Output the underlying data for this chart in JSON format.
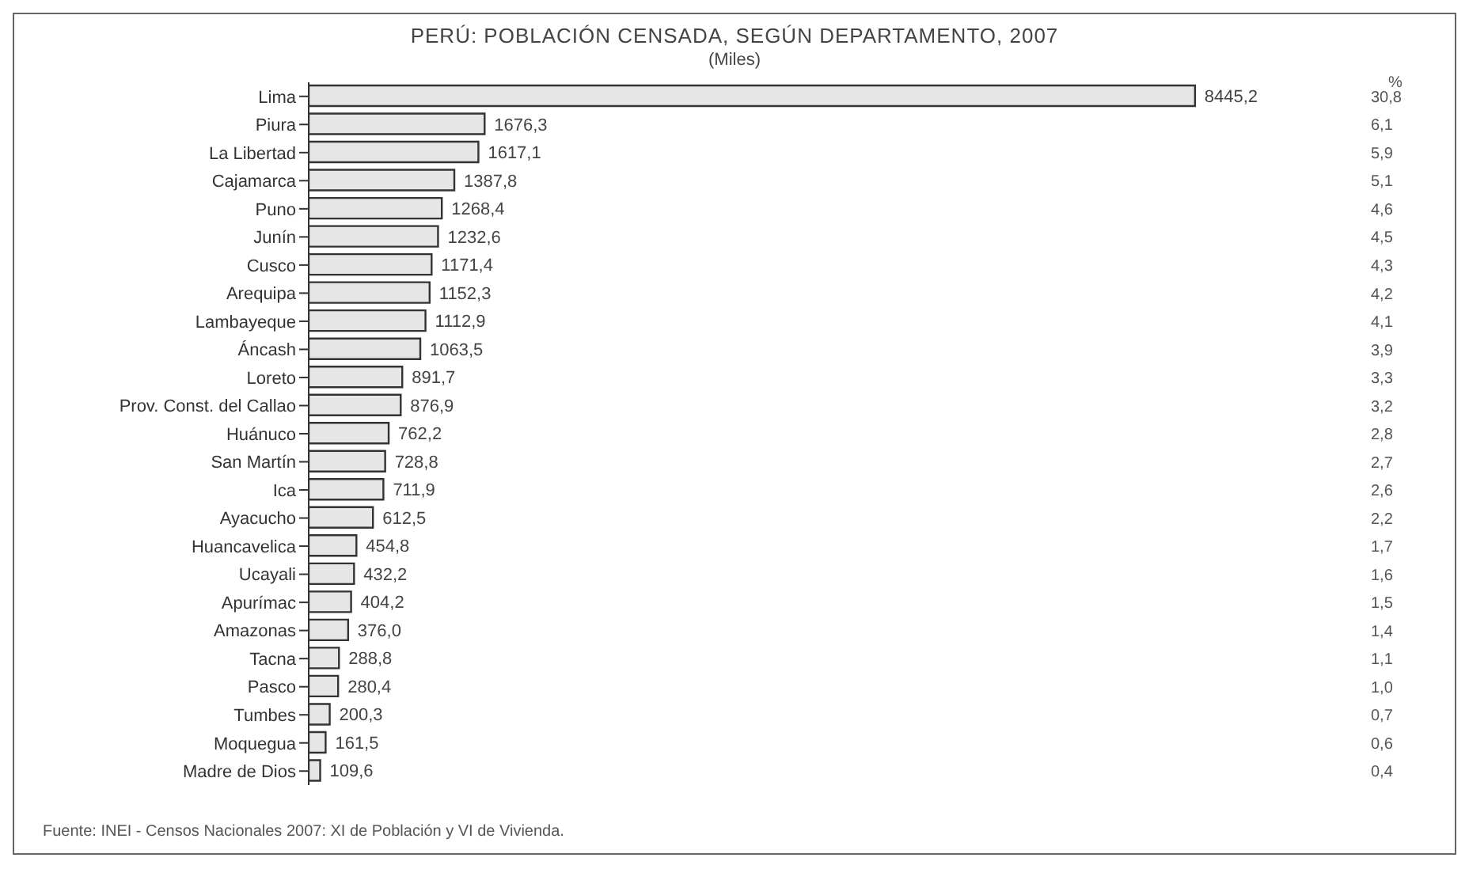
{
  "chart_data": {
    "type": "bar",
    "orientation": "horizontal",
    "title": "PERÚ: POBLACIÓN CENSADA, SEGÚN DEPARTAMENTO, 2007",
    "subtitle": "(Miles)",
    "categories": [
      "Lima",
      "Piura",
      "La Libertad",
      "Cajamarca",
      "Puno",
      "Junín",
      "Cusco",
      "Arequipa",
      "Lambayeque",
      "Áncash",
      "Loreto",
      "Prov. Const. del Callao",
      "Huánuco",
      "San Martín",
      "Ica",
      "Ayacucho",
      "Huancavelica",
      "Ucayali",
      "Apurímac",
      "Amazonas",
      "Tacna",
      "Pasco",
      "Tumbes",
      "Moquegua",
      "Madre de Dios"
    ],
    "values": [
      8445.2,
      1676.3,
      1617.1,
      1387.8,
      1268.4,
      1232.6,
      1171.4,
      1152.3,
      1112.9,
      1063.5,
      891.7,
      876.9,
      762.2,
      728.8,
      711.9,
      612.5,
      454.8,
      432.2,
      404.2,
      376.0,
      288.8,
      280.4,
      200.3,
      161.5,
      109.6
    ],
    "value_labels": [
      "8445,2",
      "1676,3",
      "1617,1",
      "1387,8",
      "1268,4",
      "1232,6",
      "1171,4",
      "1152,3",
      "1112,9",
      "1063,5",
      "891,7",
      "876,9",
      "762,2",
      "728,8",
      "711,9",
      "612,5",
      "454,8",
      "432,2",
      "404,2",
      "376,0",
      "288,8",
      "280,4",
      "200,3",
      "161,5",
      "109,6"
    ],
    "color": "#e6e6e6",
    "tick_labels": "y",
    "annotations": [
      "%",
      "30,8",
      "6,1",
      "5,9",
      "5,1",
      "4,6",
      "4,5",
      "4,3",
      "4,2",
      "4,1",
      "3,9",
      "3,3",
      "3,2",
      "2,8",
      "2,7",
      "2,6",
      "2,2",
      "1,7",
      "1,6",
      "1,5",
      "1,4",
      "1,1",
      "1,0",
      "0,7",
      "0,6",
      "0,4",
      "Fuente: INEI - Censos Nacionales 2007: XI de Población y VI de Vivienda."
    ]
  }
}
